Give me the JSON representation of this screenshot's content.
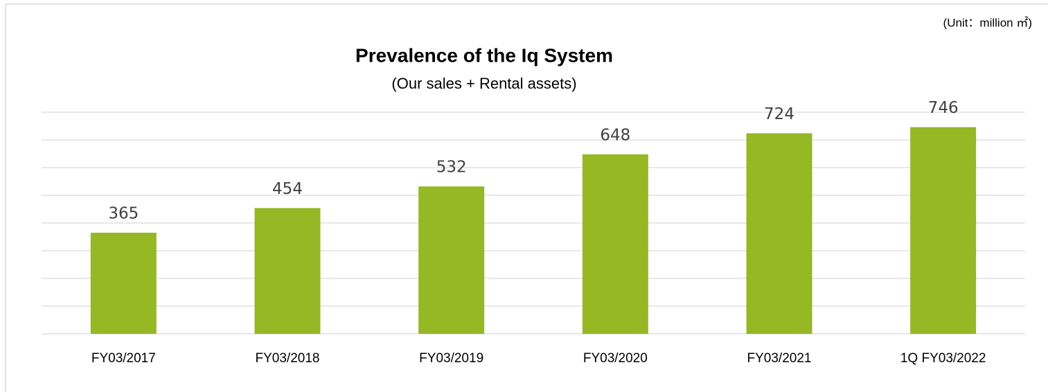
{
  "chart_data": {
    "type": "bar",
    "title": "Prevalence of the Iq System",
    "subtitle": "(Our sales + Rental assets)",
    "unit_note": "(Unit：million ㎡)",
    "categories": [
      "FY03/2017",
      "FY03/2018",
      "FY03/2019",
      "FY03/2020",
      "FY03/2021",
      "1Q FY03/2022"
    ],
    "values": [
      365,
      454,
      532,
      648,
      724,
      746
    ],
    "color": "#95b824",
    "ylim": [
      0,
      800
    ],
    "yticks": [
      0,
      100,
      200,
      300,
      400,
      500,
      600,
      700,
      800
    ],
    "grid": true,
    "show_ytick_labels": false,
    "data_labels": true
  }
}
